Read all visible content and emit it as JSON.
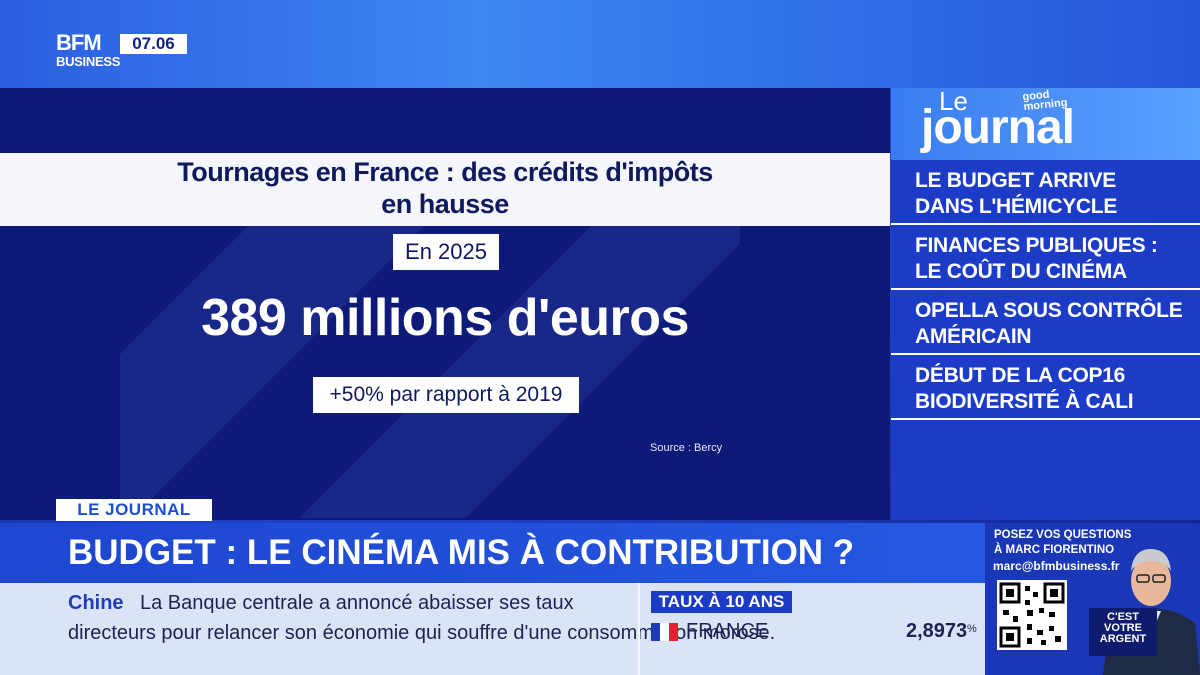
{
  "header": {
    "logo_top": "BFM",
    "logo_bottom": "BUSINESS",
    "clock": "07.06"
  },
  "panel": {
    "title_line1": "Tournages en France : des crédits d'impôts",
    "title_line2": "en hausse",
    "year_label": "En 2025",
    "amount": "389 millions d'euros",
    "comparison": "+50% par rapport à 2019",
    "source": "Source : Bercy"
  },
  "sidebar": {
    "brand_le": "Le",
    "brand_journal": "journal",
    "brand_gm_line1": "good",
    "brand_gm_line2": "morning",
    "items": [
      {
        "line1": "LE BUDGET ARRIVE",
        "line2": "DANS L'HÉMICYCLE"
      },
      {
        "line1": "FINANCES PUBLIQUES :",
        "line2": "LE COÛT DU CINÉMA"
      },
      {
        "line1": "OPELLA SOUS CONTRÔLE",
        "line2": "AMÉRICAIN"
      },
      {
        "line1": "DÉBUT DE LA COP16",
        "line2": "BIODIVERSITÉ À CALI"
      }
    ]
  },
  "headline": {
    "tag": "LE JOURNAL",
    "text": "BUDGET : LE CINÉMA MIS À CONTRIBUTION ?"
  },
  "ticker": {
    "country": "Chine",
    "line1": "La Banque centrale a annoncé abaisser ses taux",
    "line2": "directeurs pour relancer son économie qui souffre d'une consommation morose.",
    "rate_label": "TAUX À 10 ANS",
    "rate_country": "FRANCE",
    "rate_value": "2,8973",
    "rate_unit": "%"
  },
  "promo": {
    "line1": "POSEZ VOS QUESTIONS",
    "line2": "À MARC FIORENTINO",
    "email": "marc@bfmbusiness.fr",
    "show_line1": "C'EST",
    "show_line2": "VOTRE",
    "show_line3": "ARGENT"
  },
  "colors": {
    "accent_blue": "#1c3cc8",
    "panel_navy": "#0e1a78",
    "ticker_bg": "#dbe3f8"
  }
}
